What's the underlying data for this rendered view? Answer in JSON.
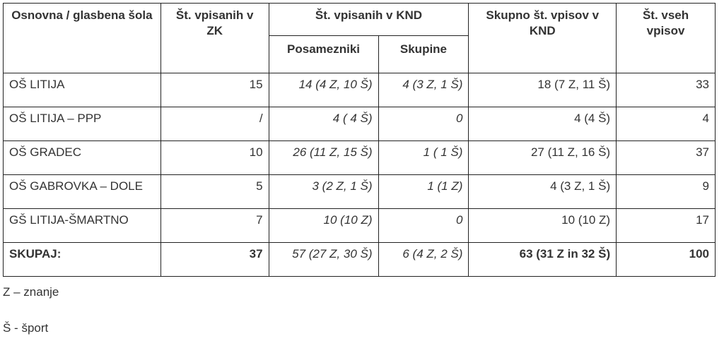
{
  "table": {
    "header": {
      "school": "Osnovna / glasbena šola",
      "zk": "Št. vpisanih v ZK",
      "knd": "Št. vpisanih v KND",
      "individuals": "Posamezniki",
      "groups": "Skupine",
      "total_knd": "Skupno št. vpisov v KND",
      "total": "Št. vseh vpisov"
    },
    "rows": [
      [
        "OŠ LITIJA",
        "15",
        "14 (4 Z, 10 Š)",
        "4 (3 Z, 1 Š)",
        "18 (7 Z, 11 Š)",
        "33"
      ],
      [
        "OŠ LITIJA – PPP",
        "/",
        "4 ( 4 Š)",
        "0",
        "4 (4 Š)",
        "4"
      ],
      [
        "OŠ GRADEC",
        "10",
        "26 (11 Z, 15 Š)",
        "1 ( 1 Š)",
        "27 (11 Z, 16 Š)",
        "37"
      ],
      [
        "OŠ GABROVKA – DOLE",
        "5",
        "3 (2 Z, 1 Š)",
        "1 (1 Z)",
        "4 (3 Z, 1 Š)",
        "9"
      ],
      [
        "GŠ LITIJA-ŠMARTNO",
        "7",
        "10 (10  Z)",
        "0",
        "10 (10 Z)",
        "17"
      ]
    ],
    "total_row": [
      "SKUPAJ:",
      "37",
      "57 (27 Z, 30 Š)",
      "6 (4 Z, 2 Š)",
      "63 (31 Z in 32 Š)",
      "100"
    ]
  },
  "notes": [
    "Z – znanje",
    "Š - šport"
  ]
}
